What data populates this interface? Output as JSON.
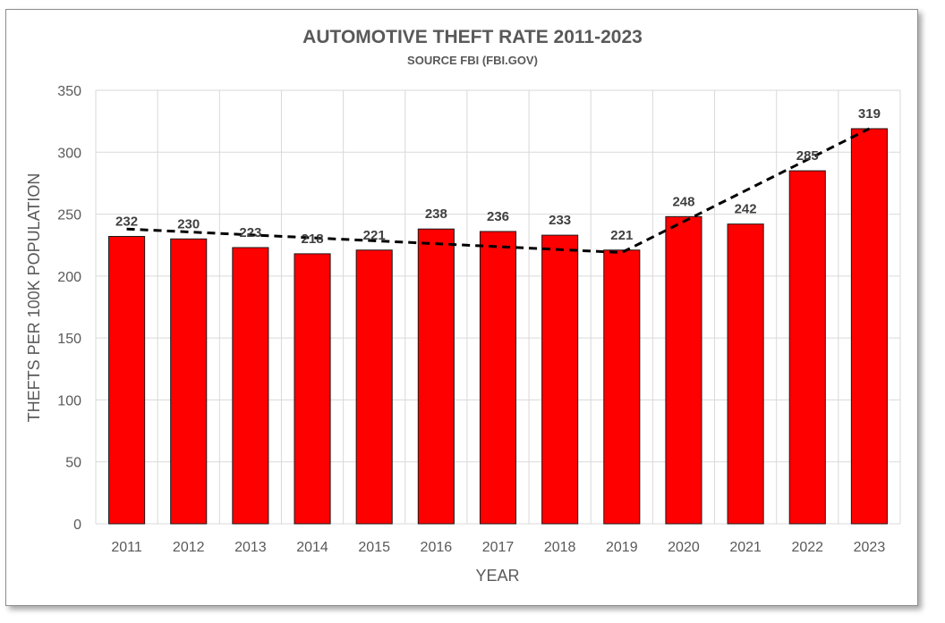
{
  "chart_data": {
    "type": "bar",
    "title": "AUTOMOTIVE THEFT RATE 2011-2023",
    "subtitle": "SOURCE FBI (FBI.GOV)",
    "xlabel": "YEAR",
    "ylabel": "THEFTS PER 100K POPULATION",
    "categories": [
      "2011",
      "2012",
      "2013",
      "2014",
      "2015",
      "2016",
      "2017",
      "2018",
      "2019",
      "2020",
      "2021",
      "2022",
      "2023"
    ],
    "values": [
      232,
      230,
      223,
      218,
      221,
      238,
      236,
      233,
      221,
      248,
      242,
      285,
      319
    ],
    "ylim": [
      0,
      350
    ],
    "yticks": [
      0,
      50,
      100,
      150,
      200,
      250,
      300,
      350
    ],
    "grid": true,
    "data_labels": true,
    "trendline": {
      "style": "dashed",
      "x": [
        "2011",
        "2019",
        "2023"
      ],
      "y": [
        238,
        219,
        319
      ]
    },
    "colors": {
      "bar_fill": "#ff0000",
      "bar_edge": "#1a1a1a",
      "trendline": "#000000",
      "grid": "#d9d9d9"
    }
  }
}
